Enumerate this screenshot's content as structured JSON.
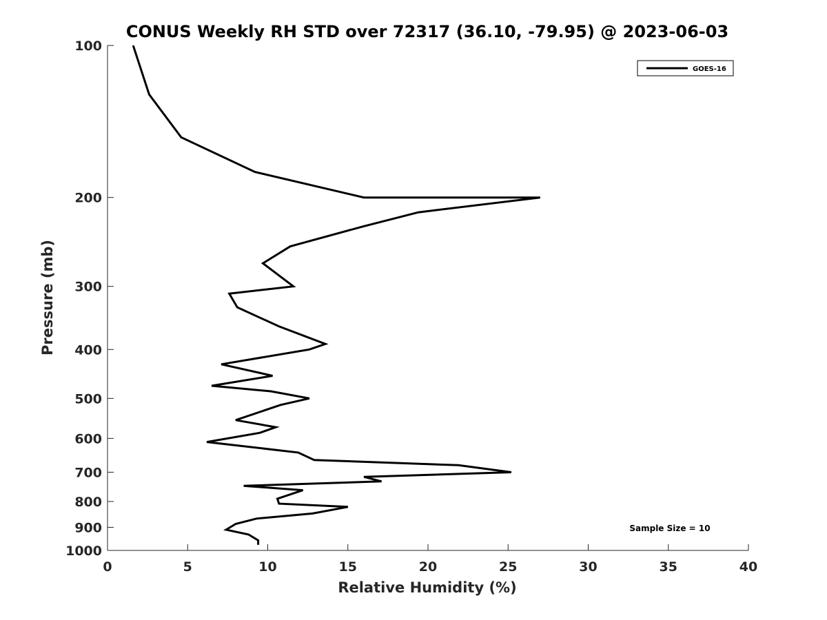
{
  "chart_data": {
    "type": "line",
    "title": "CONUS Weekly RH STD over 72317 (36.10, -79.95) @ 2023-06-03",
    "xlabel": "Relative Humidity (%)",
    "ylabel": "Pressure (mb)",
    "xlim": [
      0,
      40
    ],
    "ylim": [
      100,
      1000
    ],
    "y_scale": "log",
    "y_reversed": true,
    "grid": false,
    "legend_placement": "top-right",
    "x_ticks": [
      0,
      5,
      10,
      15,
      20,
      25,
      30,
      35,
      40
    ],
    "y_ticks": [
      100,
      200,
      300,
      400,
      500,
      600,
      700,
      800,
      900,
      1000
    ],
    "series": [
      {
        "name": "GOES-16",
        "color": "#000000",
        "points": [
          [
            1.6,
            100
          ],
          [
            2.6,
            125
          ],
          [
            4.6,
            152
          ],
          [
            9.2,
            178
          ],
          [
            16.0,
            200
          ],
          [
            27.0,
            200
          ],
          [
            19.4,
            214
          ],
          [
            16.0,
            228
          ],
          [
            11.4,
            250
          ],
          [
            9.7,
            270
          ],
          [
            11.6,
            300
          ],
          [
            7.6,
            310
          ],
          [
            8.1,
            330
          ],
          [
            10.7,
            360
          ],
          [
            13.6,
            390
          ],
          [
            12.6,
            400
          ],
          [
            7.1,
            428
          ],
          [
            10.3,
            451
          ],
          [
            6.5,
            472
          ],
          [
            10.2,
            484
          ],
          [
            12.6,
            500
          ],
          [
            10.8,
            515
          ],
          [
            8.0,
            552
          ],
          [
            10.5,
            570
          ],
          [
            9.5,
            585
          ],
          [
            6.2,
            610
          ],
          [
            11.9,
            640
          ],
          [
            12.9,
            662
          ],
          [
            21.9,
            678
          ],
          [
            25.2,
            700
          ],
          [
            16.0,
            715
          ],
          [
            17.1,
            730
          ],
          [
            8.5,
            745
          ],
          [
            12.2,
            760
          ],
          [
            10.6,
            790
          ],
          [
            10.7,
            808
          ],
          [
            15.0,
            820
          ],
          [
            12.8,
            845
          ],
          [
            9.3,
            865
          ],
          [
            8.0,
            886
          ],
          [
            7.4,
            910
          ],
          [
            8.8,
            930
          ],
          [
            9.4,
            955
          ],
          [
            9.4,
            975
          ]
        ]
      }
    ],
    "annotation": "Sample Size = 10"
  }
}
